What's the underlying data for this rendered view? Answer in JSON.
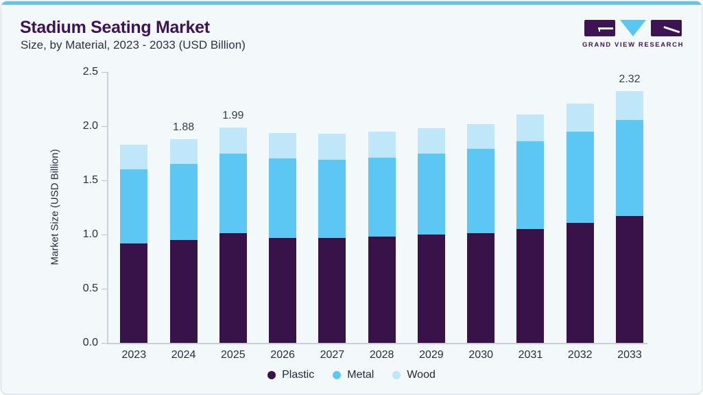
{
  "header": {
    "title": "Stadium Seating Market",
    "subtitle": "Size, by Material, 2023 - 2033 (USD Billion)"
  },
  "logo": {
    "text": "GRAND VIEW RESEARCH"
  },
  "colors": {
    "accent_top_bar": "#64c3e9",
    "card_background": "#f3f8fb",
    "title_purple": "#3e1353",
    "axis_gray": "#c6ced6",
    "plastic": "#371349",
    "metal": "#5bc7f2",
    "wood": "#c0e7f9"
  },
  "chart_data": {
    "type": "bar",
    "stacked": true,
    "title": "Stadium Seating Market Size, by Material, 2023 - 2033 (USD Billion)",
    "xlabel": "",
    "ylabel": "Market Size (USD Billion)",
    "ylim": [
      0,
      2.5
    ],
    "yticks": [
      "0.0",
      "0.5",
      "1.0",
      "1.5",
      "2.0",
      "2.5"
    ],
    "grid": false,
    "legend_position": "bottom",
    "categories": [
      "2023",
      "2024",
      "2025",
      "2026",
      "2027",
      "2028",
      "2029",
      "2030",
      "2031",
      "2032",
      "2033"
    ],
    "series": [
      {
        "name": "Plastic",
        "color": "#371349",
        "values": [
          0.92,
          0.95,
          1.01,
          0.97,
          0.97,
          0.98,
          1.0,
          1.01,
          1.05,
          1.11,
          1.17
        ]
      },
      {
        "name": "Metal",
        "color": "#5bc7f2",
        "values": [
          0.68,
          0.7,
          0.74,
          0.73,
          0.72,
          0.73,
          0.75,
          0.78,
          0.81,
          0.84,
          0.89
        ]
      },
      {
        "name": "Wood",
        "color": "#c0e7f9",
        "values": [
          0.23,
          0.23,
          0.24,
          0.24,
          0.24,
          0.24,
          0.23,
          0.23,
          0.25,
          0.26,
          0.26
        ]
      }
    ],
    "totals": [
      1.83,
      1.88,
      1.99,
      1.94,
      1.93,
      1.95,
      1.98,
      2.02,
      2.11,
      2.21,
      2.32
    ],
    "bar_labels": {
      "2024": "1.88",
      "2025": "1.99",
      "2033": "2.32"
    }
  }
}
